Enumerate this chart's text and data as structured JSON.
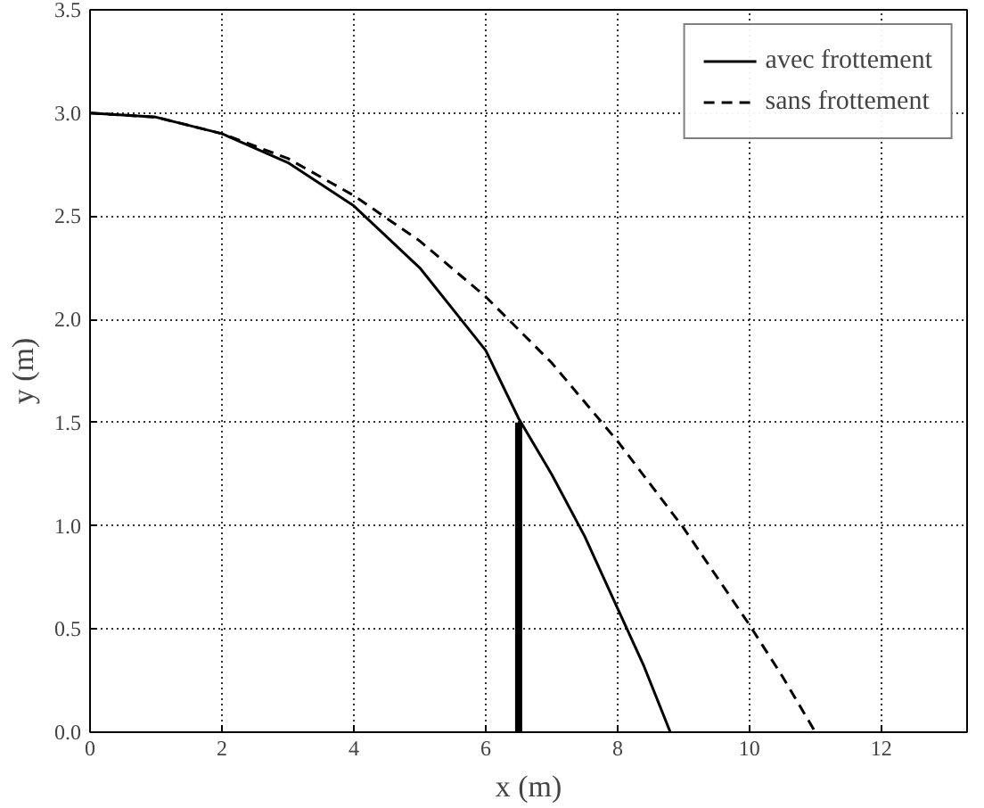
{
  "chart_data": {
    "type": "line",
    "xlabel": "x (m)",
    "ylabel": "y (m)",
    "xlim": [
      0,
      13.3
    ],
    "ylim": [
      0,
      3.5
    ],
    "xticks": [
      0,
      2,
      4,
      6,
      8,
      10,
      12
    ],
    "yticks": [
      {
        "value": 0,
        "label": "0.0"
      },
      {
        "value": 0.5,
        "label": "0.5"
      },
      {
        "value": 1,
        "label": "1.0"
      },
      {
        "value": 1.5,
        "label": "1.5"
      },
      {
        "value": 2,
        "label": "2.0"
      },
      {
        "value": 2.5,
        "label": "2.5"
      },
      {
        "value": 3,
        "label": "3.0"
      },
      {
        "value": 3.5,
        "label": "3.5"
      }
    ],
    "grid": true,
    "legend": "top right",
    "marker": "none",
    "series": [
      {
        "name": "avec frottement",
        "color": "#000000",
        "line_style": "solid",
        "x": [
          0,
          1,
          2,
          3,
          4,
          5,
          6,
          6.5,
          7,
          7.5,
          8,
          8.4,
          8.8
        ],
        "values": [
          3.0,
          2.98,
          2.9,
          2.76,
          2.55,
          2.25,
          1.85,
          1.52,
          1.25,
          0.95,
          0.6,
          0.32,
          0.0
        ]
      },
      {
        "name": "sans frottement",
        "color": "#000000",
        "line_style": "dashed",
        "x": [
          0,
          1,
          2,
          3,
          4,
          5,
          6,
          7,
          8,
          9,
          10,
          10.5,
          11
        ],
        "values": [
          3.0,
          2.98,
          2.9,
          2.78,
          2.6,
          2.38,
          2.11,
          1.79,
          1.41,
          0.99,
          0.52,
          0.27,
          0.0
        ]
      },
      {
        "color": "#000000",
        "line_style": "solid",
        "x": [
          6.5,
          6.5
        ],
        "values": [
          0,
          1.5
        ]
      }
    ]
  }
}
